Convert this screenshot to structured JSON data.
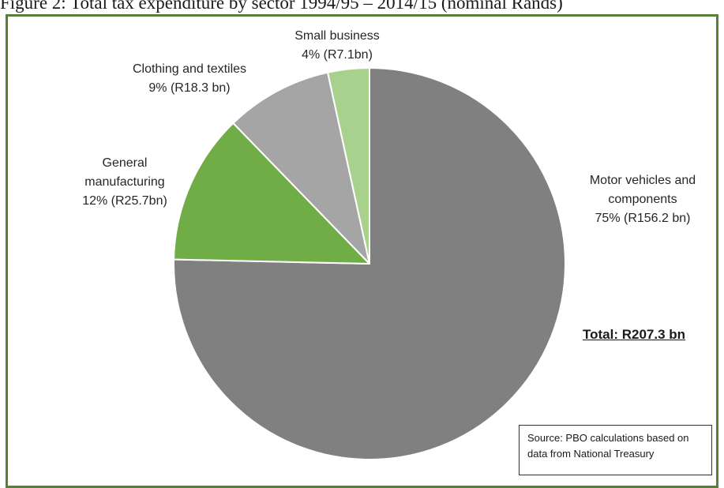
{
  "chart_data": {
    "type": "pie",
    "title": "Figure 2: Total tax expenditure by sector 1994/95 – 2014/15 (nominal Rands)",
    "total_label": "Total: R207.3 bn",
    "source": "Source: PBO calculations based on data from National Treasury",
    "slices": [
      {
        "name": "Motor vehicles and components",
        "name_lines": [
          "Motor vehicles and",
          "components"
        ],
        "pct_label": "75% (R156.2 bn)",
        "value": 156.2,
        "color": "#808080"
      },
      {
        "name": "General manufacturing",
        "name_lines": [
          "General",
          "manufacturing"
        ],
        "pct_label": "12% (R25.7bn)",
        "value": 25.7,
        "color": "#70ad47"
      },
      {
        "name": "Clothing and textiles",
        "name_lines": [
          "Clothing and textiles"
        ],
        "pct_label": "9% (R18.3 bn)",
        "value": 18.3,
        "color": "#a5a5a5"
      },
      {
        "name": "Small business",
        "name_lines": [
          "Small business"
        ],
        "pct_label": "4% (R7.1bn)",
        "value": 7.1,
        "color": "#a9d18e"
      }
    ]
  }
}
